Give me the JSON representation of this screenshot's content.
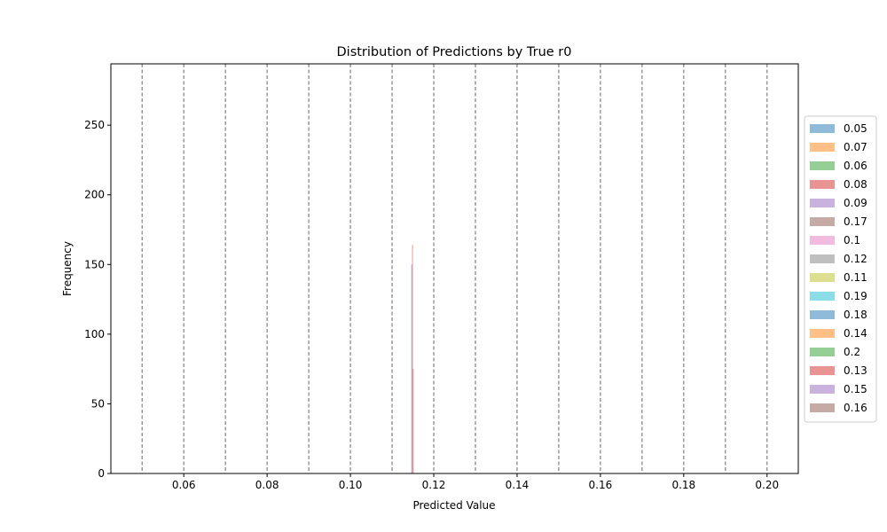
{
  "chart_data": {
    "type": "bar",
    "title": "Distribution of Predictions by True r0",
    "xlabel": "Predicted Value",
    "ylabel": "Frequency",
    "xlim": [
      0.0425,
      0.2075
    ],
    "ylim": [
      0,
      294
    ],
    "x_ticks": [
      "0.06",
      "0.08",
      "0.10",
      "0.12",
      "0.14",
      "0.16",
      "0.18",
      "0.20"
    ],
    "x_tick_values": [
      0.06,
      0.08,
      0.1,
      0.12,
      0.14,
      0.16,
      0.18,
      0.2
    ],
    "y_ticks": [
      "0",
      "50",
      "100",
      "150",
      "200",
      "250"
    ],
    "y_tick_values": [
      0,
      50,
      100,
      150,
      200,
      250
    ],
    "reference_lines_x": [
      0.05,
      0.06,
      0.07,
      0.08,
      0.09,
      0.1,
      0.11,
      0.12,
      0.13,
      0.14,
      0.15,
      0.16,
      0.17,
      0.18,
      0.19,
      0.2
    ],
    "reference_line_style": "dashed",
    "legend_position": "right",
    "grid": false,
    "series": [
      {
        "name": "0.05",
        "color": "#1f77b4",
        "bins": [
          [
            0.1147,
            0.1149,
            0
          ]
        ]
      },
      {
        "name": "0.07",
        "color": "#ff7f0e",
        "bins": [
          [
            0.1147,
            0.1149,
            0
          ]
        ]
      },
      {
        "name": "0.06",
        "color": "#2ca02c",
        "bins": [
          [
            0.1147,
            0.1149,
            0
          ]
        ]
      },
      {
        "name": "0.08",
        "color": "#d62728",
        "bins": [
          [
            0.1147,
            0.1149,
            0
          ]
        ]
      },
      {
        "name": "0.09",
        "color": "#9467bd",
        "bins": [
          [
            0.1147,
            0.1149,
            0
          ]
        ]
      },
      {
        "name": "0.17",
        "color": "#8c564b",
        "bins": [
          [
            0.1147,
            0.1149,
            0
          ]
        ]
      },
      {
        "name": "0.1",
        "color": "#e377c2",
        "bins": [
          [
            0.1147,
            0.1149,
            0
          ]
        ]
      },
      {
        "name": "0.12",
        "color": "#7f7f7f",
        "bins": [
          [
            0.1147,
            0.1149,
            0
          ]
        ]
      },
      {
        "name": "0.11",
        "color": "#bcbd22",
        "bins": [
          [
            0.1147,
            0.1149,
            0
          ]
        ]
      },
      {
        "name": "0.19",
        "color": "#17becf",
        "bins": [
          [
            0.1147,
            0.1149,
            0
          ]
        ]
      },
      {
        "name": "0.18",
        "color": "#1f77b4",
        "bins": [
          [
            0.1146,
            0.1148,
            150
          ]
        ]
      },
      {
        "name": "0.14",
        "color": "#ff7f0e",
        "bins": [
          [
            0.1147,
            0.1149,
            0
          ]
        ]
      },
      {
        "name": "0.2",
        "color": "#2ca02c",
        "bins": [
          [
            0.1147,
            0.1149,
            0
          ]
        ]
      },
      {
        "name": "0.13",
        "color": "#d62728",
        "bins": [
          [
            0.1148,
            0.115,
            164
          ],
          [
            0.115,
            0.1151,
            75
          ]
        ]
      },
      {
        "name": "0.15",
        "color": "#9467bd",
        "bins": [
          [
            0.1147,
            0.1149,
            0
          ]
        ]
      },
      {
        "name": "0.16",
        "color": "#8c564b",
        "bins": [
          [
            0.1147,
            0.1149,
            0
          ]
        ]
      }
    ]
  }
}
